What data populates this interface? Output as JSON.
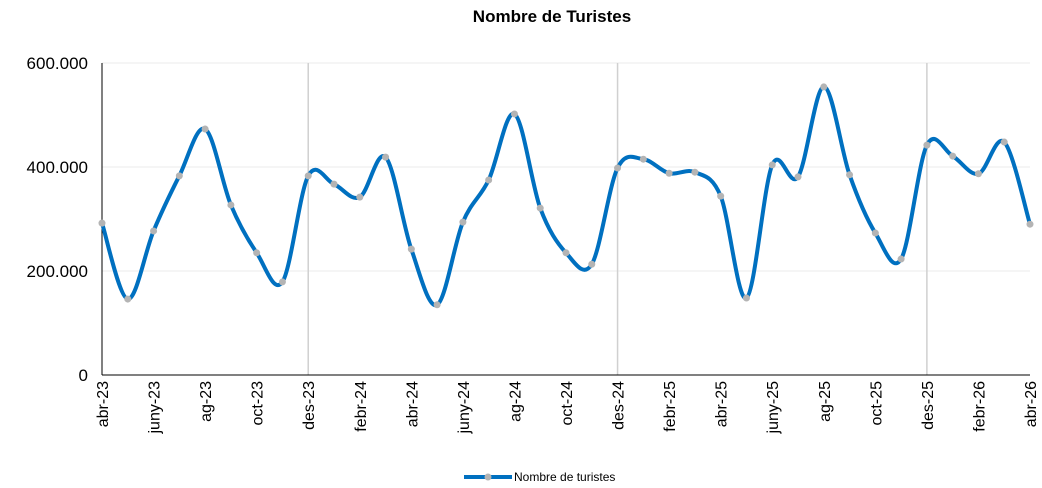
{
  "chart_data": {
    "type": "line",
    "title": "Nombre de Turistes",
    "categories": [
      "abr-23",
      null,
      "juny-23",
      null,
      "ag-23",
      null,
      "oct-23",
      null,
      "des-23",
      null,
      "febr-24",
      null,
      "abr-24",
      null,
      "juny-24",
      null,
      "ag-24",
      null,
      "oct-24",
      null,
      "des-24",
      null,
      "febr-25",
      null,
      "abr-25",
      null,
      "juny-25",
      null,
      "ag-25",
      null,
      "oct-25",
      null,
      "des-25",
      null,
      "febr-26",
      null,
      "abr-26"
    ],
    "series": [
      {
        "name": "Nombre de turistes",
        "color": "#0070c0",
        "marker_color": "#b4b4b4",
        "values": [
          292000,
          146000,
          277000,
          383000,
          473000,
          327000,
          235000,
          179000,
          383000,
          367000,
          342000,
          419000,
          242000,
          135000,
          294000,
          375000,
          502000,
          321000,
          235000,
          213000,
          398000,
          415000,
          388000,
          390000,
          344000,
          148000,
          404000,
          381000,
          554000,
          385000,
          273000,
          223000,
          442000,
          421000,
          387000,
          448000,
          290000
        ]
      }
    ],
    "ylim": [
      0,
      600000
    ],
    "yticks": [
      0,
      {
        "value": 200000,
        "label": "200.000"
      },
      {
        "value": 400000,
        "label": "400.000"
      },
      {
        "value": 600000,
        "label": "600.000"
      }
    ],
    "grid": true,
    "smooth": true,
    "legend": "bottom"
  }
}
